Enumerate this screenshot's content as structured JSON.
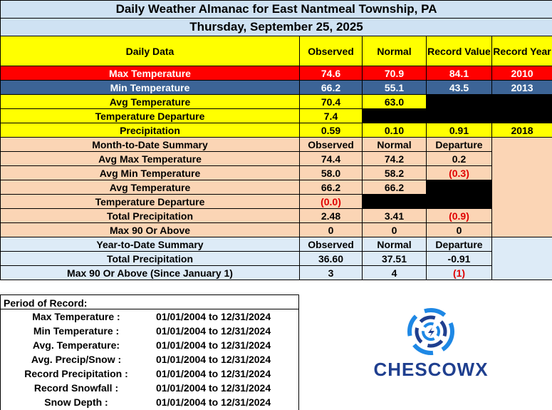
{
  "title": "Daily Weather Almanac for East Nantmeal Township, PA",
  "date": "Thursday, September 25, 2025",
  "daily": {
    "headers": [
      "Daily Data",
      "Observed",
      "Normal",
      "Record Value",
      "Record Year"
    ],
    "max_temp": {
      "label": "Max Temperature",
      "observed": "74.6",
      "normal": "70.9",
      "record_value": "84.1",
      "record_year": "2010"
    },
    "min_temp": {
      "label": "Min Temperature",
      "observed": "66.2",
      "normal": "55.1",
      "record_value": "43.5",
      "record_year": "2013"
    },
    "avg_temp": {
      "label": "Avg Temperature",
      "observed": "70.4",
      "normal": "63.0"
    },
    "temp_dep": {
      "label": "Temperature Departure",
      "observed": "7.4"
    },
    "precip": {
      "label": "Precipitation",
      "observed": "0.59",
      "normal": "0.10",
      "record_value": "0.91",
      "record_year": "2018"
    }
  },
  "mtd": {
    "headers": [
      "Month-to-Date Summary",
      "Observed",
      "Normal",
      "Departure"
    ],
    "rows": [
      {
        "label": "Avg Max Temperature",
        "observed": "74.4",
        "normal": "74.2",
        "departure": "0.2"
      },
      {
        "label": "Avg Min Temperature",
        "observed": "58.0",
        "normal": "58.2",
        "departure": "(0.3)"
      },
      {
        "label": "Avg Temperature",
        "observed": "66.2",
        "normal": "66.2"
      },
      {
        "label": "Temperature Departure",
        "observed": "(0.0)"
      },
      {
        "label": "Total Precipitation",
        "observed": "2.48",
        "normal": "3.41",
        "departure": "(0.9)"
      },
      {
        "label": "Max 90 Or Above",
        "observed": "0",
        "normal": "0",
        "departure": "0"
      }
    ]
  },
  "ytd": {
    "headers": [
      "Year-to-Date Summary",
      "Observed",
      "Normal",
      "Departure"
    ],
    "rows": [
      {
        "label": "Total Precipitation",
        "observed": "36.60",
        "normal": "37.51",
        "departure": "-0.91"
      },
      {
        "label": "Max 90 Or Above (Since January 1)",
        "observed": "3",
        "normal": "4",
        "departure": "(1)"
      }
    ]
  },
  "period_of_record": {
    "title": "Period of Record:",
    "rows": [
      {
        "label": "Max Temperature :",
        "range": "01/01/2004 to 12/31/2024"
      },
      {
        "label": "Min Temperature :",
        "range": "01/01/2004 to 12/31/2024"
      },
      {
        "label": "Avg. Temperature:",
        "range": "01/01/2004 to 12/31/2024"
      },
      {
        "label": "Avg. Precip/Snow :",
        "range": "01/01/2004 to 12/31/2024"
      },
      {
        "label": "Record Precipitation :",
        "range": "01/01/2004 to 12/31/2024"
      },
      {
        "label": "Record Snowfall :",
        "range": "01/01/2004 to 12/31/2024"
      },
      {
        "label": "Snow Depth :",
        "range": "01/01/2004 to 12/31/2024"
      }
    ]
  },
  "logo": {
    "text": "CHESCOWX",
    "colors": {
      "blue": "#1e88e5",
      "navy": "#1f3f8f"
    }
  }
}
